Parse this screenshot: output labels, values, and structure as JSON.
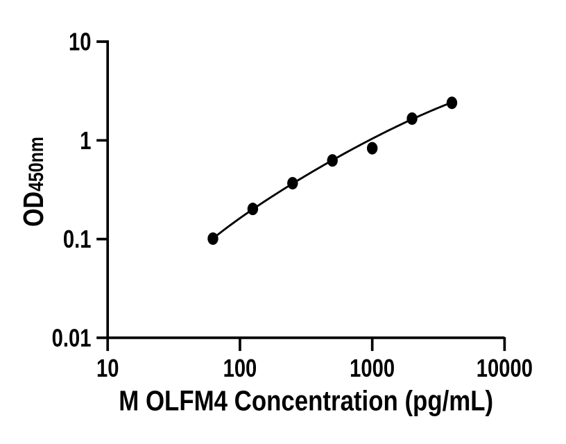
{
  "chart_data": {
    "type": "scatter",
    "title": "",
    "xlabel": "M OLFM4 Concentration (pg/mL)",
    "ylabel_main": "OD",
    "ylabel_sub": "450nm",
    "x_scale": "log10",
    "y_scale": "log10",
    "xlim": [
      10,
      10000
    ],
    "ylim": [
      0.01,
      10
    ],
    "x_ticks": [
      10,
      100,
      1000,
      10000
    ],
    "y_ticks": [
      10,
      1,
      0.1,
      0.01
    ],
    "x_tick_labels": [
      "10",
      "100",
      "1000",
      "10000"
    ],
    "y_tick_labels": [
      "10",
      "1",
      "0.1",
      "0.01"
    ],
    "grid": false,
    "legend": false,
    "series": [
      {
        "name": "standard-curve-points",
        "marker": "filled-circle",
        "color": "#000000",
        "x": [
          62.5,
          125,
          250,
          500,
          1000,
          2000,
          4000
        ],
        "y": [
          0.101,
          0.202,
          0.368,
          0.626,
          0.832,
          1.66,
          2.4
        ]
      }
    ],
    "fit_curve": {
      "model": "4PL",
      "params": {
        "a": -0.041,
        "b": 0.7831,
        "c": 9025,
        "d": 7.091
      },
      "x_start": 62.5,
      "x_end": 4000,
      "color": "#000000"
    },
    "colors": {
      "ink": "#000000",
      "background": "#ffffff"
    }
  }
}
